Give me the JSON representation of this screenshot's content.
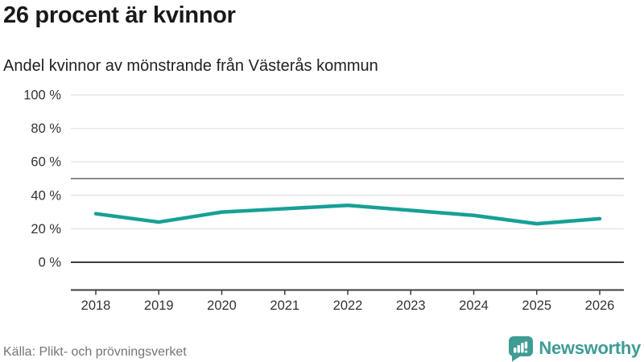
{
  "header": {
    "title": "26 procent är kvinnor",
    "subtitle": "Andel kvinnor av mönstrande från Västerås kommun"
  },
  "chart_data": {
    "type": "line",
    "title": "26 procent är kvinnor",
    "subtitle": "Andel kvinnor av mönstrande från Västerås kommun",
    "x": [
      "2018",
      "2019",
      "2020",
      "2021",
      "2022",
      "2023",
      "2024",
      "2025",
      "2026"
    ],
    "series": [
      {
        "name": "Andel kvinnor av mönstrande",
        "values": [
          29,
          24,
          30,
          32,
          34,
          31,
          28,
          23,
          26
        ]
      }
    ],
    "xlabel": "",
    "ylabel": "",
    "ylim": [
      0,
      100
    ],
    "yticks": [
      {
        "value": 0,
        "label": "0 %"
      },
      {
        "value": 20,
        "label": "20 %"
      },
      {
        "value": 40,
        "label": "40 %"
      },
      {
        "value": 60,
        "label": "60 %"
      },
      {
        "value": 80,
        "label": "80 %"
      },
      {
        "value": 100,
        "label": "100 %"
      }
    ],
    "reference_line": 50,
    "grid": true,
    "legend": "none",
    "line_color": "#16a096"
  },
  "footer": {
    "source": "Källa: Plikt- och prövningsverket",
    "brand": "Newsworthy"
  },
  "colors": {
    "line": "#16a096",
    "gridline": "#e4e4e4",
    "axis_dark": "#3d3d3d",
    "reference": "#8a8a8a",
    "tick_text": "#333333",
    "title_text": "#191919",
    "source_text": "#757575",
    "brand_teal": "#3f9c95"
  }
}
